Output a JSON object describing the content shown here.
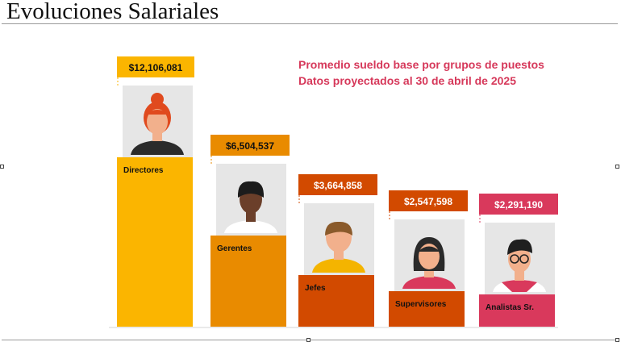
{
  "slide": {
    "title": "Evoluciones Salariales",
    "subtitle_line1": "Promedio sueldo base por grupos de puestos",
    "subtitle_line2": "Datos proyectados al 30 de abril de 2025",
    "subtitle_color": "#d6385a"
  },
  "chart_data": {
    "type": "bar",
    "title": "",
    "xlabel": "",
    "ylabel": "",
    "ylim": [
      0,
      12106081
    ],
    "grid": false,
    "categories": [
      "Directores",
      "Gerentes",
      "Jefes",
      "Supervisores",
      "Analistas Sr."
    ],
    "values": [
      12106081,
      6504537,
      3664858,
      2547598,
      2291190
    ],
    "value_labels": [
      "$12,106,081",
      "$6,504,537",
      "$3,664,858",
      "$2,547,598",
      "$2,291,190"
    ],
    "colors": [
      "#fbb500",
      "#e98b00",
      "#d24a00",
      "#d24a00",
      "#d9395c"
    ],
    "icons": [
      "woman-bun-avatar-icon",
      "man-dark-hair-avatar-icon",
      "man-avatar-icon",
      "woman-bob-avatar-icon",
      "man-glasses-avatar-icon"
    ]
  }
}
